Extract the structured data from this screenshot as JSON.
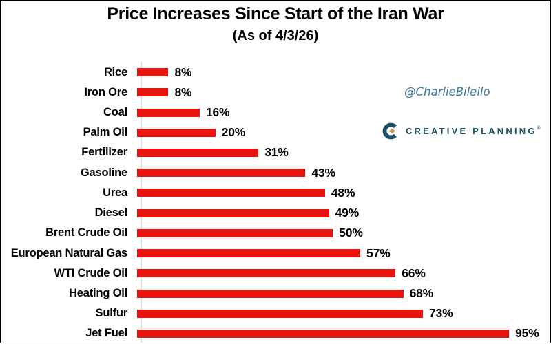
{
  "header": {
    "title": "Price Increases Since Start of the Iran War",
    "subtitle": "(As of 4/3/26)"
  },
  "watermark": {
    "handle": "@CharlieBilello",
    "color": "#3e7a9e"
  },
  "logo": {
    "name": "Creative Planning",
    "text": "CREATIVE PLANNING",
    "registered_mark": "®",
    "text_color": "#1d4e63",
    "icon_color": "#1d4e63",
    "diamond_color": "#b9975b"
  },
  "chart_data": {
    "type": "bar",
    "orientation": "horizontal",
    "title": "Price Increases Since Start of the Iran War",
    "subtitle": "(As of 4/3/26)",
    "categories": [
      "Rice",
      "Iron Ore",
      "Coal",
      "Palm Oil",
      "Fertilizer",
      "Gasoline",
      "Urea",
      "Diesel",
      "Brent Crude Oil",
      "European Natural Gas",
      "WTI Crude Oil",
      "Heating Oil",
      "Sulfur",
      "Jet Fuel"
    ],
    "values": [
      8,
      8,
      16,
      20,
      31,
      43,
      48,
      49,
      50,
      57,
      66,
      68,
      73,
      95
    ],
    "value_labels": [
      "8%",
      "8%",
      "16%",
      "20%",
      "31%",
      "43%",
      "48%",
      "49%",
      "50%",
      "57%",
      "66%",
      "68%",
      "73%",
      "95%"
    ],
    "unit": "%",
    "xlim": [
      0,
      100
    ],
    "bar_color": "#e8140f",
    "axis_color": "#dcdcdc",
    "grid": false,
    "legend": false,
    "data_labels": "outside-end"
  }
}
